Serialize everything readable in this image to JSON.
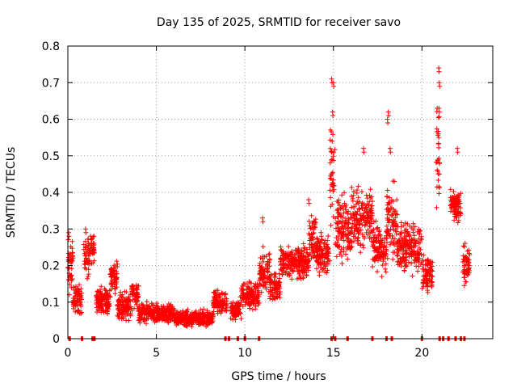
{
  "chart_data": {
    "type": "scatter",
    "title": "Day 135 of 2025, SRMTID for receiver savo",
    "xlabel": "GPS time / hours",
    "ylabel": "SRMTID / TECUs",
    "xlim": [
      0,
      24
    ],
    "ylim": [
      0,
      0.8
    ],
    "x_ticks": [
      0,
      5,
      10,
      15,
      20
    ],
    "x_tick_labels": [
      "0",
      "5",
      "10",
      "15",
      "20"
    ],
    "y_ticks": [
      0,
      0.1,
      0.2,
      0.3,
      0.4,
      0.5,
      0.6,
      0.7,
      0.8
    ],
    "y_tick_labels": [
      "0",
      "0.1",
      "0.2",
      "0.3",
      "0.4",
      "0.5",
      "0.6",
      "0.7",
      "0.8"
    ],
    "grid": true,
    "marker": "+",
    "color": "#ff0000",
    "series": [
      {
        "name": "SRMTID",
        "segments": [
          {
            "x0": 0.0,
            "x1": 0.3,
            "center": 0.2,
            "spread": 0.1
          },
          {
            "x0": 0.3,
            "x1": 0.8,
            "center": 0.11,
            "spread": 0.06
          },
          {
            "x0": 0.9,
            "x1": 1.2,
            "center": 0.22,
            "spread": 0.08
          },
          {
            "x0": 1.2,
            "x1": 1.5,
            "center": 0.25,
            "spread": 0.06
          },
          {
            "x0": 1.6,
            "x1": 2.4,
            "center": 0.1,
            "spread": 0.05
          },
          {
            "x0": 2.4,
            "x1": 2.8,
            "center": 0.17,
            "spread": 0.05
          },
          {
            "x0": 2.8,
            "x1": 3.6,
            "center": 0.09,
            "spread": 0.05
          },
          {
            "x0": 3.6,
            "x1": 4.0,
            "center": 0.12,
            "spread": 0.05
          },
          {
            "x0": 4.0,
            "x1": 6.0,
            "center": 0.07,
            "spread": 0.035
          },
          {
            "x0": 6.0,
            "x1": 8.2,
            "center": 0.055,
            "spread": 0.03
          },
          {
            "x0": 8.2,
            "x1": 9.0,
            "center": 0.1,
            "spread": 0.04
          },
          {
            "x0": 9.2,
            "x1": 9.8,
            "center": 0.08,
            "spread": 0.04
          },
          {
            "x0": 9.8,
            "x1": 10.8,
            "center": 0.12,
            "spread": 0.05
          },
          {
            "x0": 10.8,
            "x1": 11.4,
            "center": 0.18,
            "spread": 0.08
          },
          {
            "x0": 11.4,
            "x1": 12.0,
            "center": 0.14,
            "spread": 0.06
          },
          {
            "x0": 12.0,
            "x1": 13.6,
            "center": 0.21,
            "spread": 0.06
          },
          {
            "x0": 13.6,
            "x1": 14.0,
            "center": 0.28,
            "spread": 0.08
          },
          {
            "x0": 14.0,
            "x1": 14.8,
            "center": 0.23,
            "spread": 0.07
          },
          {
            "x0": 14.8,
            "x1": 15.1,
            "center": 0.45,
            "spread": 0.22
          },
          {
            "x0": 15.1,
            "x1": 16.0,
            "center": 0.3,
            "spread": 0.12
          },
          {
            "x0": 16.0,
            "x1": 17.2,
            "center": 0.33,
            "spread": 0.12
          },
          {
            "x0": 17.2,
            "x1": 18.0,
            "center": 0.25,
            "spread": 0.09
          },
          {
            "x0": 18.0,
            "x1": 18.6,
            "center": 0.32,
            "spread": 0.14
          },
          {
            "x0": 18.6,
            "x1": 20.0,
            "center": 0.25,
            "spread": 0.09
          },
          {
            "x0": 20.0,
            "x1": 20.6,
            "center": 0.18,
            "spread": 0.07
          },
          {
            "x0": 20.8,
            "x1": 21.0,
            "center": 0.5,
            "spread": 0.2
          },
          {
            "x0": 21.6,
            "x1": 22.2,
            "center": 0.36,
            "spread": 0.06
          },
          {
            "x0": 22.3,
            "x1": 22.7,
            "center": 0.2,
            "spread": 0.07
          }
        ],
        "outliers": [
          {
            "x": 14.9,
            "y": 0.71
          },
          {
            "x": 15.0,
            "y": 0.7
          },
          {
            "x": 14.95,
            "y": 0.62
          },
          {
            "x": 18.1,
            "y": 0.62
          },
          {
            "x": 18.05,
            "y": 0.6
          },
          {
            "x": 20.95,
            "y": 0.74
          },
          {
            "x": 20.98,
            "y": 0.7
          },
          {
            "x": 20.96,
            "y": 0.63
          },
          {
            "x": 20.93,
            "y": 0.56
          },
          {
            "x": 22.0,
            "y": 0.52
          },
          {
            "x": 16.7,
            "y": 0.52
          },
          {
            "x": 18.2,
            "y": 0.52
          },
          {
            "x": 1.0,
            "y": 0.3
          },
          {
            "x": 0.05,
            "y": 0.29
          },
          {
            "x": 11.0,
            "y": 0.33
          },
          {
            "x": 13.6,
            "y": 0.38
          },
          {
            "x": 14.3,
            "y": 0.29
          }
        ],
        "zero_x": [
          0.1,
          0.8,
          1.4,
          1.5,
          8.9,
          9.1,
          9.6,
          10.0,
          10.8,
          14.9,
          15.1,
          15.8,
          17.2,
          18.0,
          18.3,
          20.0,
          21.0,
          21.2,
          21.5,
          21.9,
          22.2,
          22.4
        ]
      }
    ]
  }
}
